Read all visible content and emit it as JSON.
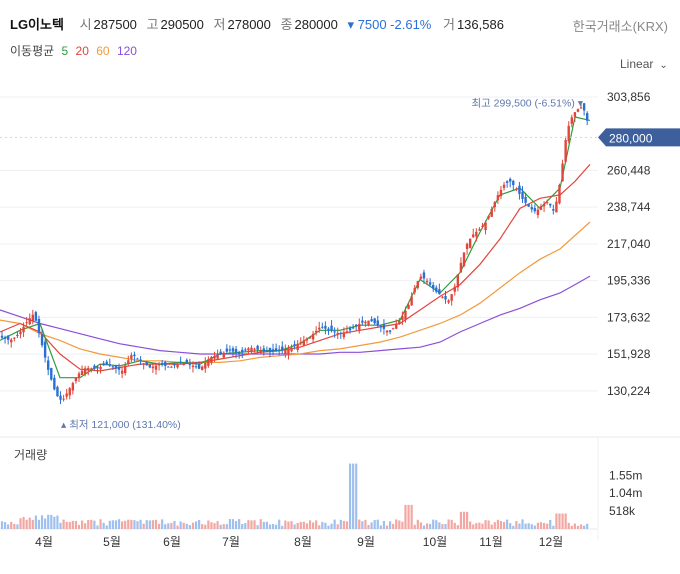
{
  "header": {
    "name": "LG이노텍",
    "open_label": "시",
    "open": "287500",
    "high_label": "고",
    "high": "290500",
    "low_label": "저",
    "low": "278000",
    "close_label": "종",
    "close": "280000",
    "change": "▾ 7500 -2.61%",
    "volume_label": "거",
    "volume": "136,586",
    "exchange": "한국거래소(KRX)"
  },
  "ma": {
    "title": "이동평균",
    "periods": [
      "5",
      "20",
      "60",
      "120"
    ],
    "colors": [
      "#2e9d3a",
      "#e2453b",
      "#f39a3c",
      "#8a4fd8"
    ]
  },
  "scale_toggle": "Linear",
  "volume_panel": {
    "title": "거래량"
  },
  "chart_data": {
    "type": "candlestick",
    "price_axis": {
      "ticks": [
        303856,
        280000,
        260448,
        238744,
        217040,
        195336,
        173632,
        151928,
        130224
      ],
      "tick_labels": [
        "303,856",
        "280,000",
        "260,448",
        "238,744",
        "217,040",
        "195,336",
        "173,632",
        "151,928",
        "130,224"
      ],
      "range": [
        113000,
        318000
      ]
    },
    "current_price": {
      "value": 280000,
      "label": "280,000"
    },
    "max_annotation": {
      "text": "최고 299,500 (-6.51%) ▾",
      "value": 299500
    },
    "min_annotation": {
      "text": "▴ 최저 121,000 (131.40%)",
      "value": 121000
    },
    "x_axis": {
      "months": [
        "4월",
        "5월",
        "6월",
        "7월",
        "8월",
        "9월",
        "10월",
        "11월",
        "12월"
      ]
    },
    "volume_axis": {
      "ticks": [
        1550000,
        1040000,
        518000
      ],
      "tick_labels": [
        "1.55m",
        "1.04m",
        "518k"
      ],
      "max": 2150000
    },
    "close_path": [
      [
        0,
        162
      ],
      [
        10,
        160
      ],
      [
        18,
        163
      ],
      [
        28,
        172
      ],
      [
        34,
        176
      ],
      [
        40,
        162
      ],
      [
        48,
        143
      ],
      [
        56,
        128
      ],
      [
        62,
        124
      ],
      [
        70,
        132
      ],
      [
        78,
        140
      ],
      [
        86,
        144
      ],
      [
        96,
        143
      ],
      [
        106,
        146
      ],
      [
        114,
        144
      ],
      [
        122,
        142
      ],
      [
        132,
        152
      ],
      [
        140,
        148
      ],
      [
        150,
        144
      ],
      [
        160,
        146
      ],
      [
        170,
        144
      ],
      [
        180,
        147
      ],
      [
        190,
        146
      ],
      [
        200,
        143
      ],
      [
        210,
        150
      ],
      [
        220,
        152
      ],
      [
        230,
        154
      ],
      [
        240,
        152
      ],
      [
        250,
        156
      ],
      [
        260,
        154
      ],
      [
        270,
        153
      ],
      [
        280,
        154
      ],
      [
        290,
        155
      ],
      [
        300,
        159
      ],
      [
        310,
        162
      ],
      [
        320,
        168
      ],
      [
        330,
        166
      ],
      [
        340,
        164
      ],
      [
        350,
        166
      ],
      [
        360,
        170
      ],
      [
        370,
        172
      ],
      [
        380,
        168
      ],
      [
        390,
        165
      ],
      [
        400,
        172
      ],
      [
        408,
        180
      ],
      [
        414,
        190
      ],
      [
        420,
        198
      ],
      [
        426,
        196
      ],
      [
        434,
        190
      ],
      [
        442,
        186
      ],
      [
        448,
        183
      ],
      [
        454,
        190
      ],
      [
        460,
        204
      ],
      [
        466,
        216
      ],
      [
        472,
        222
      ],
      [
        480,
        226
      ],
      [
        486,
        230
      ],
      [
        492,
        238
      ],
      [
        498,
        246
      ],
      [
        504,
        252
      ],
      [
        510,
        254
      ],
      [
        516,
        250
      ],
      [
        522,
        244
      ],
      [
        530,
        238
      ],
      [
        536,
        236
      ],
      [
        542,
        240
      ],
      [
        548,
        242
      ],
      [
        554,
        236
      ],
      [
        558,
        246
      ],
      [
        562,
        262
      ],
      [
        566,
        280
      ],
      [
        570,
        290
      ],
      [
        576,
        296
      ],
      [
        582,
        298
      ],
      [
        586,
        294
      ],
      [
        590,
        280
      ]
    ],
    "ma5_path": [
      [
        0,
        160
      ],
      [
        20,
        166
      ],
      [
        40,
        170
      ],
      [
        60,
        138
      ],
      [
        80,
        138
      ],
      [
        100,
        146
      ],
      [
        120,
        145
      ],
      [
        140,
        148
      ],
      [
        160,
        146
      ],
      [
        180,
        147
      ],
      [
        200,
        146
      ],
      [
        220,
        152
      ],
      [
        240,
        153
      ],
      [
        260,
        154
      ],
      [
        280,
        154
      ],
      [
        300,
        158
      ],
      [
        320,
        166
      ],
      [
        340,
        166
      ],
      [
        360,
        169
      ],
      [
        380,
        169
      ],
      [
        400,
        172
      ],
      [
        420,
        196
      ],
      [
        440,
        188
      ],
      [
        460,
        200
      ],
      [
        480,
        224
      ],
      [
        500,
        246
      ],
      [
        520,
        250
      ],
      [
        540,
        238
      ],
      [
        560,
        250
      ],
      [
        575,
        292
      ],
      [
        590,
        290
      ]
    ],
    "ma20_path": [
      [
        0,
        165
      ],
      [
        20,
        170
      ],
      [
        40,
        165
      ],
      [
        60,
        152
      ],
      [
        80,
        143
      ],
      [
        100,
        142
      ],
      [
        120,
        144
      ],
      [
        140,
        146
      ],
      [
        160,
        146
      ],
      [
        180,
        146
      ],
      [
        200,
        147
      ],
      [
        220,
        149
      ],
      [
        240,
        151
      ],
      [
        260,
        153
      ],
      [
        280,
        154
      ],
      [
        300,
        156
      ],
      [
        320,
        160
      ],
      [
        340,
        164
      ],
      [
        360,
        166
      ],
      [
        380,
        168
      ],
      [
        400,
        170
      ],
      [
        420,
        178
      ],
      [
        440,
        186
      ],
      [
        460,
        193
      ],
      [
        480,
        205
      ],
      [
        500,
        220
      ],
      [
        520,
        238
      ],
      [
        540,
        244
      ],
      [
        560,
        246
      ],
      [
        575,
        254
      ],
      [
        590,
        264
      ]
    ],
    "ma60_path": [
      [
        0,
        172
      ],
      [
        20,
        170
      ],
      [
        40,
        164
      ],
      [
        60,
        160
      ],
      [
        80,
        155
      ],
      [
        100,
        152
      ],
      [
        120,
        150
      ],
      [
        140,
        148
      ],
      [
        160,
        148
      ],
      [
        180,
        147
      ],
      [
        200,
        147
      ],
      [
        220,
        147
      ],
      [
        240,
        148
      ],
      [
        260,
        150
      ],
      [
        280,
        151
      ],
      [
        300,
        152
      ],
      [
        320,
        154
      ],
      [
        340,
        155
      ],
      [
        360,
        157
      ],
      [
        380,
        159
      ],
      [
        400,
        162
      ],
      [
        420,
        166
      ],
      [
        440,
        170
      ],
      [
        460,
        175
      ],
      [
        480,
        182
      ],
      [
        500,
        191
      ],
      [
        520,
        200
      ],
      [
        540,
        208
      ],
      [
        560,
        214
      ],
      [
        575,
        222
      ],
      [
        590,
        230
      ]
    ],
    "ma120_path": [
      [
        0,
        178
      ],
      [
        20,
        174
      ],
      [
        40,
        170
      ],
      [
        60,
        167
      ],
      [
        80,
        164
      ],
      [
        100,
        161
      ],
      [
        120,
        158
      ],
      [
        140,
        156
      ],
      [
        160,
        154
      ],
      [
        180,
        153
      ],
      [
        200,
        152
      ],
      [
        220,
        152
      ],
      [
        240,
        152
      ],
      [
        260,
        152
      ],
      [
        280,
        152
      ],
      [
        300,
        152
      ],
      [
        320,
        152
      ],
      [
        340,
        153
      ],
      [
        360,
        153
      ],
      [
        380,
        154
      ],
      [
        400,
        155
      ],
      [
        420,
        156
      ],
      [
        440,
        159
      ],
      [
        460,
        165
      ],
      [
        480,
        170
      ],
      [
        500,
        175
      ],
      [
        520,
        179
      ],
      [
        540,
        184
      ],
      [
        560,
        188
      ],
      [
        575,
        193
      ],
      [
        590,
        198
      ]
    ]
  }
}
